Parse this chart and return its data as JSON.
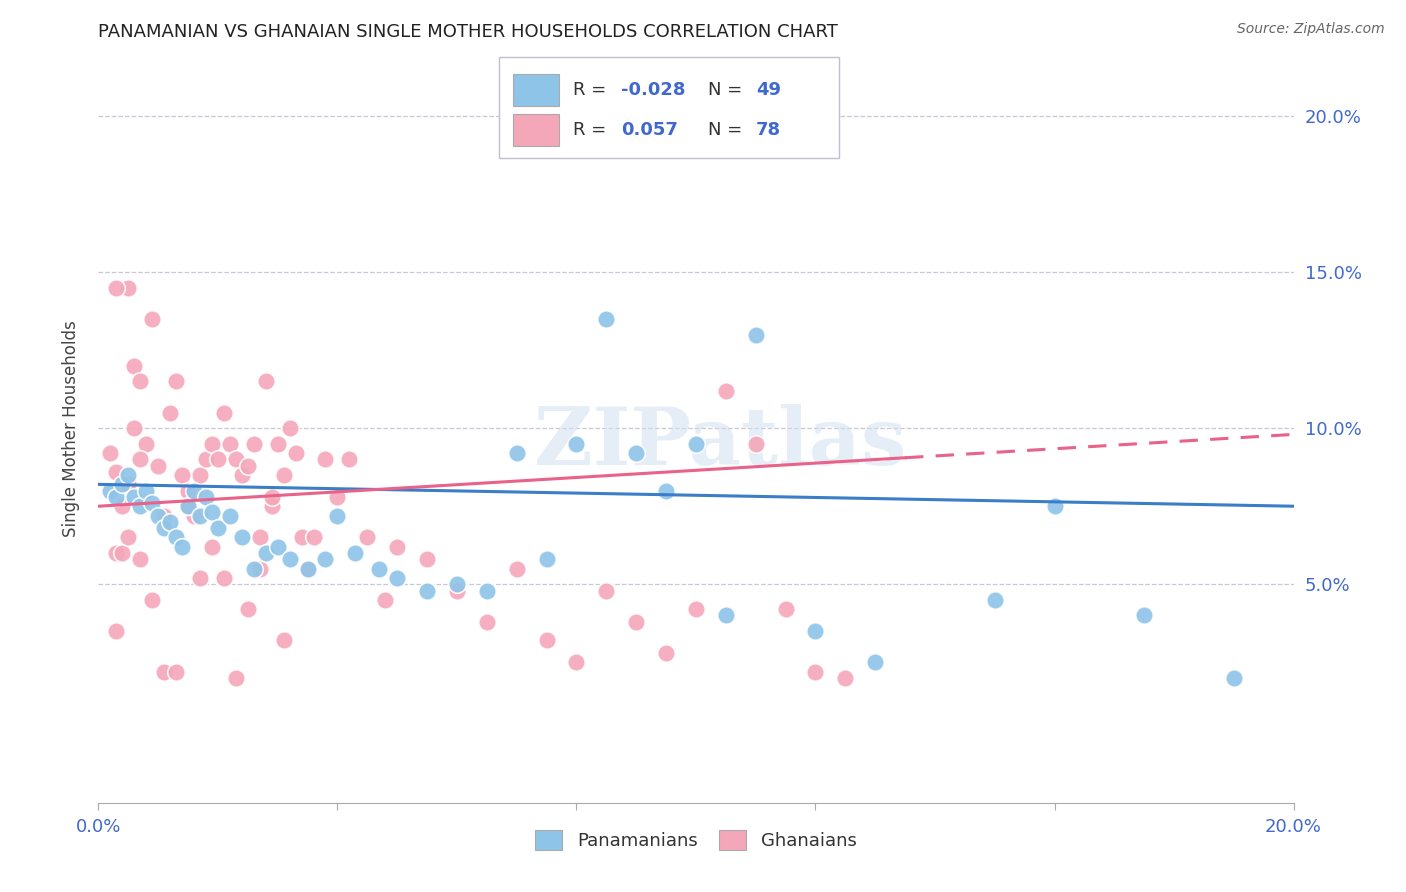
{
  "title": "PANAMANIAN VS GHANAIAN SINGLE MOTHER HOUSEHOLDS CORRELATION CHART",
  "source": "Source: ZipAtlas.com",
  "ylabel": "Single Mother Households",
  "ytick_labels": [
    "",
    "5.0%",
    "10.0%",
    "15.0%",
    "20.0%"
  ],
  "ytick_values": [
    0.0,
    0.05,
    0.1,
    0.15,
    0.2
  ],
  "xtick_values": [
    0.0,
    0.04,
    0.08,
    0.12,
    0.16,
    0.2
  ],
  "xlim": [
    0.0,
    0.2
  ],
  "ylim": [
    -0.02,
    0.22
  ],
  "legend_R_blue": "-0.028",
  "legend_N_blue": "49",
  "legend_R_pink": "0.057",
  "legend_N_pink": "78",
  "legend_labels": [
    "Panamanians",
    "Ghanaians"
  ],
  "blue_color": "#8ec4e8",
  "pink_color": "#f4a7b9",
  "blue_line_color": "#3a7dc9",
  "pink_line_color": "#e8628a",
  "text_color": "#4169CD",
  "watermark": "ZIPatlas",
  "blue_line_y0": 0.082,
  "blue_line_y1": 0.075,
  "pink_line_y0": 0.075,
  "pink_line_y1": 0.098,
  "blue_scatter_x": [
    0.002,
    0.003,
    0.004,
    0.005,
    0.006,
    0.007,
    0.008,
    0.009,
    0.01,
    0.011,
    0.012,
    0.013,
    0.014,
    0.015,
    0.016,
    0.017,
    0.018,
    0.019,
    0.02,
    0.022,
    0.024,
    0.026,
    0.028,
    0.03,
    0.032,
    0.035,
    0.038,
    0.04,
    0.043,
    0.047,
    0.05,
    0.055,
    0.06,
    0.065,
    0.07,
    0.075,
    0.08,
    0.085,
    0.09,
    0.095,
    0.1,
    0.105,
    0.11,
    0.12,
    0.13,
    0.15,
    0.16,
    0.175,
    0.19
  ],
  "blue_scatter_y": [
    0.08,
    0.078,
    0.082,
    0.085,
    0.078,
    0.075,
    0.08,
    0.076,
    0.072,
    0.068,
    0.07,
    0.065,
    0.062,
    0.075,
    0.08,
    0.072,
    0.078,
    0.073,
    0.068,
    0.072,
    0.065,
    0.055,
    0.06,
    0.062,
    0.058,
    0.055,
    0.058,
    0.072,
    0.06,
    0.055,
    0.052,
    0.048,
    0.05,
    0.048,
    0.092,
    0.058,
    0.095,
    0.135,
    0.092,
    0.08,
    0.095,
    0.04,
    0.13,
    0.035,
    0.025,
    0.045,
    0.075,
    0.04,
    0.02
  ],
  "pink_scatter_x": [
    0.002,
    0.003,
    0.004,
    0.005,
    0.006,
    0.007,
    0.008,
    0.009,
    0.01,
    0.011,
    0.012,
    0.013,
    0.014,
    0.015,
    0.016,
    0.017,
    0.018,
    0.019,
    0.02,
    0.021,
    0.022,
    0.023,
    0.024,
    0.025,
    0.026,
    0.027,
    0.028,
    0.029,
    0.03,
    0.031,
    0.032,
    0.033,
    0.034,
    0.035,
    0.036,
    0.038,
    0.04,
    0.042,
    0.045,
    0.048,
    0.05,
    0.055,
    0.06,
    0.065,
    0.07,
    0.075,
    0.08,
    0.085,
    0.09,
    0.095,
    0.1,
    0.105,
    0.11,
    0.115,
    0.12,
    0.125,
    0.003,
    0.005,
    0.007,
    0.009,
    0.011,
    0.013,
    0.015,
    0.017,
    0.019,
    0.021,
    0.023,
    0.025,
    0.027,
    0.029,
    0.031,
    0.003,
    0.005,
    0.004,
    0.003,
    0.005,
    0.006,
    0.007
  ],
  "pink_scatter_y": [
    0.092,
    0.086,
    0.075,
    0.082,
    0.12,
    0.115,
    0.095,
    0.135,
    0.088,
    0.072,
    0.105,
    0.115,
    0.085,
    0.08,
    0.072,
    0.085,
    0.09,
    0.095,
    0.09,
    0.105,
    0.095,
    0.09,
    0.085,
    0.088,
    0.095,
    0.065,
    0.115,
    0.075,
    0.095,
    0.085,
    0.1,
    0.092,
    0.065,
    0.055,
    0.065,
    0.09,
    0.078,
    0.09,
    0.065,
    0.045,
    0.062,
    0.058,
    0.048,
    0.038,
    0.055,
    0.032,
    0.025,
    0.048,
    0.038,
    0.028,
    0.042,
    0.112,
    0.095,
    0.042,
    0.022,
    0.02,
    0.06,
    0.082,
    0.058,
    0.045,
    0.022,
    0.022,
    0.075,
    0.052,
    0.062,
    0.052,
    0.02,
    0.042,
    0.055,
    0.078,
    0.032,
    0.035,
    0.145,
    0.06,
    0.145,
    0.065,
    0.1,
    0.09
  ]
}
